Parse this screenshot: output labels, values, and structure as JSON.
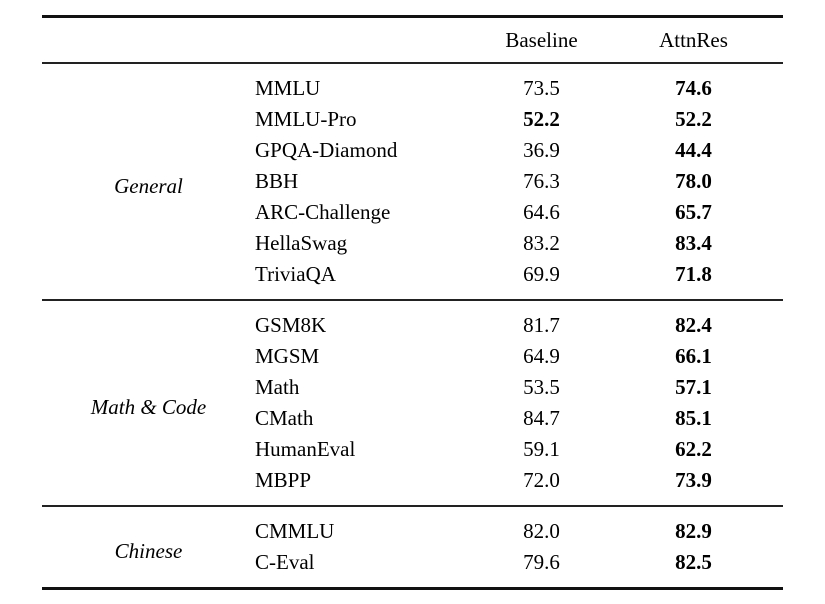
{
  "table": {
    "header_labels": {
      "baseline": "Baseline",
      "attnres": "AttnRes"
    },
    "groups": [
      {
        "label": "General",
        "rows": [
          {
            "benchmark": "MMLU",
            "baseline": "73.5",
            "attnres": "74.6",
            "bold_baseline": false,
            "bold_attnres": true
          },
          {
            "benchmark": "MMLU-Pro",
            "baseline": "52.2",
            "attnres": "52.2",
            "bold_baseline": true,
            "bold_attnres": true
          },
          {
            "benchmark": "GPQA-Diamond",
            "baseline": "36.9",
            "attnres": "44.4",
            "bold_baseline": false,
            "bold_attnres": true
          },
          {
            "benchmark": "BBH",
            "baseline": "76.3",
            "attnres": "78.0",
            "bold_baseline": false,
            "bold_attnres": true
          },
          {
            "benchmark": "ARC-Challenge",
            "baseline": "64.6",
            "attnres": "65.7",
            "bold_baseline": false,
            "bold_attnres": true
          },
          {
            "benchmark": "HellaSwag",
            "baseline": "83.2",
            "attnres": "83.4",
            "bold_baseline": false,
            "bold_attnres": true
          },
          {
            "benchmark": "TriviaQA",
            "baseline": "69.9",
            "attnres": "71.8",
            "bold_baseline": false,
            "bold_attnres": true
          }
        ]
      },
      {
        "label": "Math & Code",
        "rows": [
          {
            "benchmark": "GSM8K",
            "baseline": "81.7",
            "attnres": "82.4",
            "bold_baseline": false,
            "bold_attnres": true
          },
          {
            "benchmark": "MGSM",
            "baseline": "64.9",
            "attnres": "66.1",
            "bold_baseline": false,
            "bold_attnres": true
          },
          {
            "benchmark": "Math",
            "baseline": "53.5",
            "attnres": "57.1",
            "bold_baseline": false,
            "bold_attnres": true
          },
          {
            "benchmark": "CMath",
            "baseline": "84.7",
            "attnres": "85.1",
            "bold_baseline": false,
            "bold_attnres": true
          },
          {
            "benchmark": "HumanEval",
            "baseline": "59.1",
            "attnres": "62.2",
            "bold_baseline": false,
            "bold_attnres": true
          },
          {
            "benchmark": "MBPP",
            "baseline": "72.0",
            "attnres": "73.9",
            "bold_baseline": false,
            "bold_attnres": true
          }
        ]
      },
      {
        "label": "Chinese",
        "rows": [
          {
            "benchmark": "CMMLU",
            "baseline": "82.0",
            "attnres": "82.9",
            "bold_baseline": false,
            "bold_attnres": true
          },
          {
            "benchmark": "C-Eval",
            "baseline": "79.6",
            "attnres": "82.5",
            "bold_baseline": false,
            "bold_attnres": true
          }
        ]
      }
    ]
  },
  "styles": {
    "rule_color": "#111111",
    "text_color": "#000000",
    "background": "#ffffff"
  }
}
